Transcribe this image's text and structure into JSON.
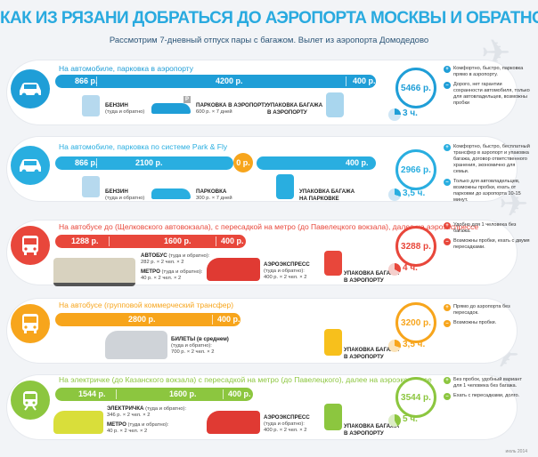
{
  "title": "КАК ИЗ РЯЗАНИ ДОБРАТЬСЯ ДО АЭРОПОРТА МОСКВЫ И ОБРАТНО?",
  "subtitle": "Рассмотрим 7-дневный отпуск пары с багажом. Вылет из аэропорта Домодедово",
  "footer": "июль 2014",
  "colors": {
    "car": "#1f9ed7",
    "parkfly": "#29aee0",
    "bus": "#e8473b",
    "shuttle": "#f7a51c",
    "train": "#8cc63f"
  },
  "routes": [
    {
      "title": "На автомобиле, парковка в аэропорту",
      "segments": [
        "866 р.",
        "4200 р.",
        "400 р."
      ],
      "details": [
        {
          "head": "БЕНЗИН",
          "sub": "(туда и обратно)"
        },
        {
          "head": "ПАРКОВКА В АЭРОПОРТУ",
          "sub": "600 р. × 7 дней"
        },
        {
          "head": "УПАКОВКА БАГАЖА",
          "sub": "В АЭРОПОРТУ"
        }
      ],
      "total": "5466 р.",
      "time": "3 ч.",
      "notes": [
        {
          "mark": "+",
          "text": "Комфортно, быстро, парковка прямо в аэропорту."
        },
        {
          "mark": "–",
          "text": "Дорого, нет гарантии сохранности автомобиля, только для автовладельцев, возможны пробки"
        }
      ]
    },
    {
      "title": "На автомобиле, парковка по системе Park & Fly",
      "segments": [
        "866 р.",
        "2100 р.",
        "0 р.",
        "400 р."
      ],
      "details": [
        {
          "head": "БЕНЗИН",
          "sub": "(туда и обратно)"
        },
        {
          "head": "ПАРКОВКА",
          "sub": "300 р. × 7 дней"
        },
        {
          "head": "УПАКОВКА БАГАЖА",
          "sub": "НА ПАРКОВКЕ"
        }
      ],
      "total": "2966 р.",
      "time": "3,5 ч.",
      "notes": [
        {
          "mark": "+",
          "text": "Комфортно, быстро, бесплатный трансфер в аэропорт и упаковка багажа, договор ответственного хранения, экономично для семьи."
        },
        {
          "mark": "–",
          "text": "Только для автовладельцев, возможны пробки, ехать от парковки до аэропорта 10-15 минут."
        }
      ]
    },
    {
      "title": "На автобусе до (Щелковского автовокзала), с пересадкой на метро (до Павелецкого вокзала), далее на аэроэкспрессе",
      "segments": [
        "1288 р.",
        "1600 р.",
        "400 р."
      ],
      "details": [
        {
          "head": "АВТОБУС",
          "sub": "(туда и обратно):",
          "sub2": "282 р. × 2 чел. × 2"
        },
        {
          "head": "МЕТРО",
          "sub": "(туда и обратно):",
          "sub2": "40 р. × 2 чел. × 2"
        },
        {
          "head": "АЭРОЭКСПРЕСС",
          "sub": "(туда и обратно):",
          "sub2": "400 р. × 2 чел. × 2"
        },
        {
          "head": "УПАКОВКА БАГАЖА",
          "sub": "В АЭРОПОРТУ"
        }
      ],
      "total": "3288 р.",
      "time": "4 ч.",
      "notes": [
        {
          "mark": "+",
          "text": "Удобно для 1 человека без багажа."
        },
        {
          "mark": "–",
          "text": "Возможны пробки, ехать с двумя пересадками."
        }
      ]
    },
    {
      "title": "На автобусе (групповой коммерческий трансфер)",
      "segments": [
        "2800 р.",
        "400 р."
      ],
      "details": [
        {
          "head": "БИЛЕТЫ (в среднем)",
          "sub": "(туда и обратно):",
          "sub2": "700 р. × 2 чел. × 2"
        },
        {
          "head": "УПАКОВКА БАГАЖА",
          "sub": "В АЭРОПОРТУ"
        }
      ],
      "total": "3200 р.",
      "time": "3,5 ч.",
      "notes": [
        {
          "mark": "+",
          "text": "Прямо до аэропорта без пересадок."
        },
        {
          "mark": "–",
          "text": "Возможны пробки."
        }
      ]
    },
    {
      "title": "На электричке (до Казанского вокзала) с пересадкой на метро (до Павелецкого), далее на аэроэкспрессе",
      "segments": [
        "1544 р.",
        "1600 р.",
        "400 р."
      ],
      "details": [
        {
          "head": "ЭЛЕКТРИЧКА",
          "sub": "(туда и обратно):",
          "sub2": "346 р. × 2 чел. × 2"
        },
        {
          "head": "МЕТРО",
          "sub": "(туда и обратно):",
          "sub2": "40 р. × 2 чел. × 2"
        },
        {
          "head": "АЭРОЭКСПРЕСС",
          "sub": "(туда и обратно):",
          "sub2": "400 р. × 2 чел. × 2"
        },
        {
          "head": "УПАКОВКА БАГАЖА",
          "sub": "В АЭРОПОРТУ"
        }
      ],
      "total": "3544 р.",
      "time": "5 ч.",
      "notes": [
        {
          "mark": "+",
          "text": "Без пробок, удобный вариант для 1 человека без багажа."
        },
        {
          "mark": "–",
          "text": "Ехать с пересадками, долго."
        }
      ]
    }
  ]
}
